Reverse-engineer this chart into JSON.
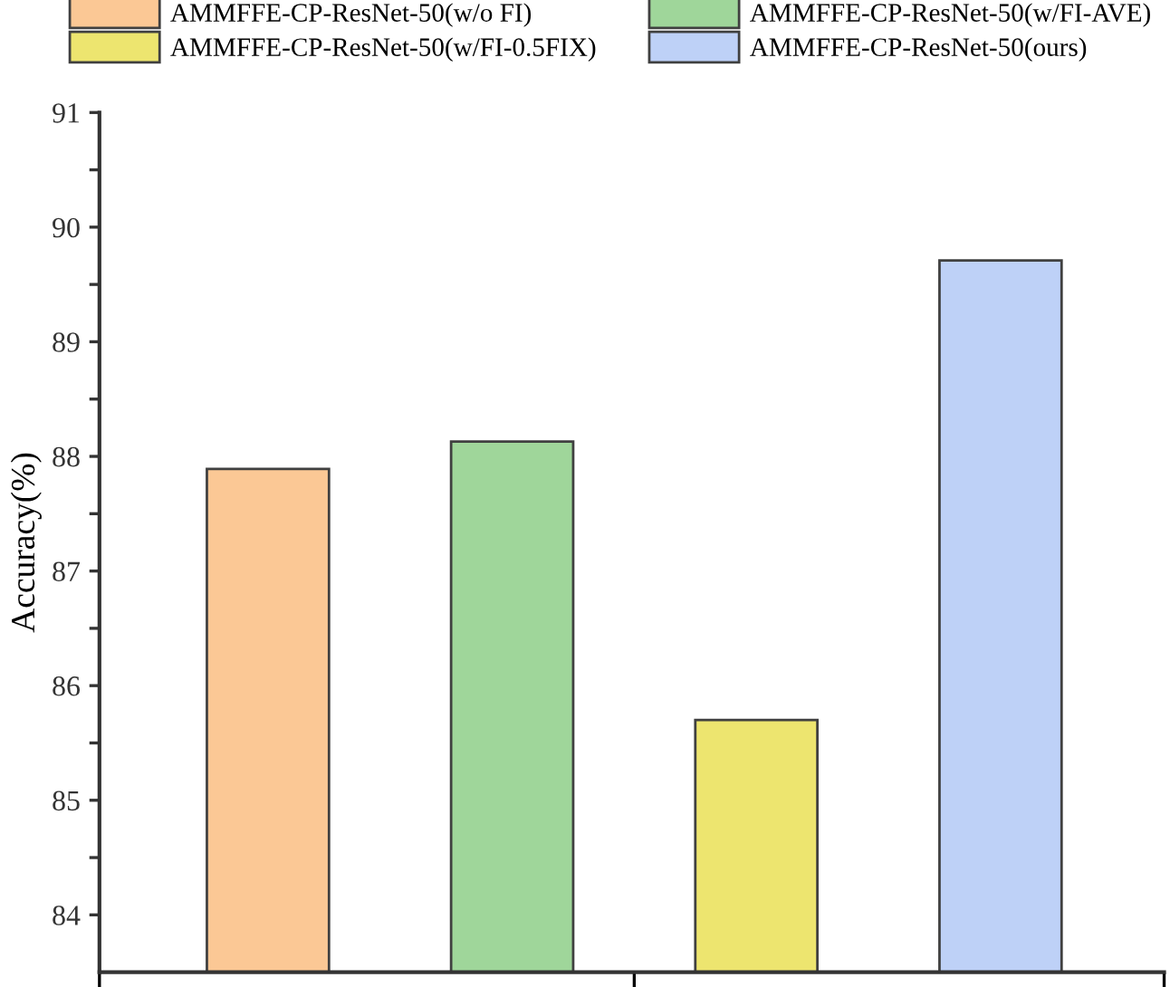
{
  "chart_data": {
    "type": "bar",
    "ylabel": "Accuracy(%)",
    "categories": [
      null
    ],
    "series": [
      {
        "name": "AMMFFE-CP-ResNet-50(w/o FI)",
        "color": "#fbc895",
        "values": [
          87.89
        ]
      },
      {
        "name": "AMMFFE-CP-ResNet-50(w/FI-AVE)",
        "color": "#9fd69a",
        "values": [
          88.13
        ]
      },
      {
        "name": "AMMFFE-CP-ResNet-50(w/FI-0.5FIX)",
        "color": "#ede56f",
        "values": [
          85.7
        ]
      },
      {
        "name": "AMMFFE-CP-ResNet-50(ours)",
        "color": "#bed1f7",
        "values": [
          89.71
        ]
      }
    ],
    "ylim": [
      83.5,
      91
    ],
    "yticks": [
      84,
      {
        "value": 84.5,
        "label": null
      },
      85,
      {
        "value": 85.5,
        "label": null
      },
      86,
      {
        "value": 86.5,
        "label": null
      },
      87,
      {
        "value": 87.5,
        "label": null
      },
      88,
      {
        "value": 88.5,
        "label": null
      },
      89,
      {
        "value": 89.5,
        "label": null
      },
      90,
      {
        "value": 90.5,
        "label": null
      },
      91
    ],
    "legend": "top",
    "grid": false
  }
}
